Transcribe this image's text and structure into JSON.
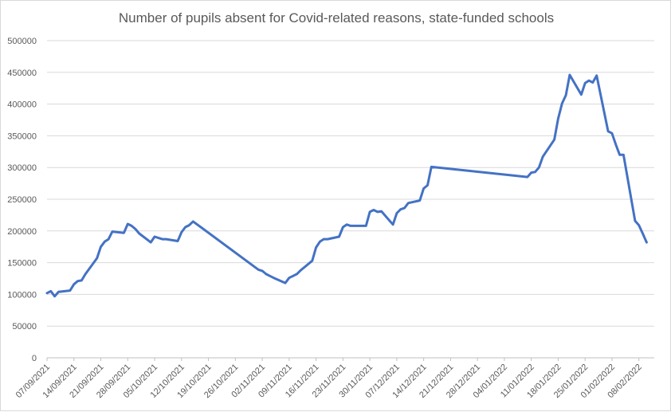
{
  "chart_data": {
    "type": "line",
    "title": "Number of pupils absent for Covid-related reasons, state-funded schools",
    "xlabel": "",
    "ylabel": "",
    "ylim": [
      0,
      500000
    ],
    "y_ticks": [
      0,
      50000,
      100000,
      150000,
      200000,
      250000,
      300000,
      350000,
      400000,
      450000,
      500000
    ],
    "y_tick_labels": [
      "0",
      "50000",
      "100000",
      "150000",
      "200000",
      "250000",
      "300000",
      "350000",
      "400000",
      "450000",
      "500000"
    ],
    "x_tick_labels": [
      "07/09/2021",
      "14/09/2021",
      "21/09/2021",
      "28/09/2021",
      "05/10/2021",
      "12/10/2021",
      "19/10/2021",
      "26/10/2021",
      "02/11/2021",
      "09/11/2021",
      "16/11/2021",
      "23/11/2021",
      "30/11/2021",
      "07/12/2021",
      "14/12/2021",
      "21/12/2021",
      "28/12/2021",
      "04/01/2022",
      "11/01/2022",
      "18/01/2022",
      "25/01/2022",
      "01/02/2022",
      "08/02/2022"
    ],
    "xlim": [
      "2021-09-07",
      "2022-02-12"
    ],
    "grid": true,
    "series": [
      {
        "name": "",
        "color": "#4472c4",
        "points": [
          [
            "2021-09-07",
            102000
          ],
          [
            "2021-09-08",
            105000
          ],
          [
            "2021-09-09",
            97000
          ],
          [
            "2021-09-10",
            104000
          ],
          [
            "2021-09-13",
            106000
          ],
          [
            "2021-09-14",
            116000
          ],
          [
            "2021-09-15",
            121000
          ],
          [
            "2021-09-16",
            122000
          ],
          [
            "2021-09-17",
            132000
          ],
          [
            "2021-09-20",
            157000
          ],
          [
            "2021-09-21",
            175000
          ],
          [
            "2021-09-22",
            183000
          ],
          [
            "2021-09-23",
            187000
          ],
          [
            "2021-09-24",
            199000
          ],
          [
            "2021-09-27",
            197000
          ],
          [
            "2021-09-28",
            211000
          ],
          [
            "2021-09-29",
            208000
          ],
          [
            "2021-09-30",
            203000
          ],
          [
            "2021-10-01",
            196000
          ],
          [
            "2021-10-04",
            182000
          ],
          [
            "2021-10-05",
            191000
          ],
          [
            "2021-10-06",
            189000
          ],
          [
            "2021-10-07",
            187000
          ],
          [
            "2021-10-08",
            187000
          ],
          [
            "2021-10-11",
            184000
          ],
          [
            "2021-10-12",
            198000
          ],
          [
            "2021-10-13",
            206000
          ],
          [
            "2021-10-14",
            209000
          ],
          [
            "2021-10-15",
            215000
          ],
          [
            "2021-11-01",
            139000
          ],
          [
            "2021-11-02",
            137000
          ],
          [
            "2021-11-03",
            132000
          ],
          [
            "2021-11-04",
            129000
          ],
          [
            "2021-11-05",
            126000
          ],
          [
            "2021-11-08",
            118000
          ],
          [
            "2021-11-09",
            126000
          ],
          [
            "2021-11-10",
            129000
          ],
          [
            "2021-11-11",
            132000
          ],
          [
            "2021-11-12",
            138000
          ],
          [
            "2021-11-15",
            153000
          ],
          [
            "2021-11-16",
            174000
          ],
          [
            "2021-11-17",
            183000
          ],
          [
            "2021-11-18",
            187000
          ],
          [
            "2021-11-19",
            187000
          ],
          [
            "2021-11-22",
            191000
          ],
          [
            "2021-11-23",
            206000
          ],
          [
            "2021-11-24",
            210000
          ],
          [
            "2021-11-25",
            208000
          ],
          [
            "2021-11-26",
            208000
          ],
          [
            "2021-11-29",
            208000
          ],
          [
            "2021-11-30",
            230000
          ],
          [
            "2021-12-01",
            233000
          ],
          [
            "2021-12-02",
            230000
          ],
          [
            "2021-12-03",
            231000
          ],
          [
            "2021-12-06",
            210000
          ],
          [
            "2021-12-07",
            228000
          ],
          [
            "2021-12-08",
            234000
          ],
          [
            "2021-12-09",
            236000
          ],
          [
            "2021-12-10",
            244000
          ],
          [
            "2021-12-13",
            248000
          ],
          [
            "2021-12-14",
            267000
          ],
          [
            "2021-12-15",
            272000
          ],
          [
            "2021-12-16",
            301000
          ],
          [
            "2022-01-10",
            285000
          ],
          [
            "2022-01-11",
            292000
          ],
          [
            "2022-01-12",
            293000
          ],
          [
            "2022-01-13",
            300000
          ],
          [
            "2022-01-14",
            317000
          ],
          [
            "2022-01-17",
            344000
          ],
          [
            "2022-01-18",
            377000
          ],
          [
            "2022-01-19",
            401000
          ],
          [
            "2022-01-20",
            414000
          ],
          [
            "2022-01-21",
            446000
          ],
          [
            "2022-01-24",
            415000
          ],
          [
            "2022-01-25",
            433000
          ],
          [
            "2022-01-26",
            437000
          ],
          [
            "2022-01-27",
            434000
          ],
          [
            "2022-01-28",
            445000
          ],
          [
            "2022-01-31",
            357000
          ],
          [
            "2022-02-01",
            354000
          ],
          [
            "2022-02-02",
            336000
          ],
          [
            "2022-02-03",
            320000
          ],
          [
            "2022-02-04",
            320000
          ],
          [
            "2022-02-07",
            216000
          ],
          [
            "2022-02-08",
            209000
          ],
          [
            "2022-02-09",
            196000
          ],
          [
            "2022-02-10",
            182000
          ]
        ]
      }
    ]
  }
}
